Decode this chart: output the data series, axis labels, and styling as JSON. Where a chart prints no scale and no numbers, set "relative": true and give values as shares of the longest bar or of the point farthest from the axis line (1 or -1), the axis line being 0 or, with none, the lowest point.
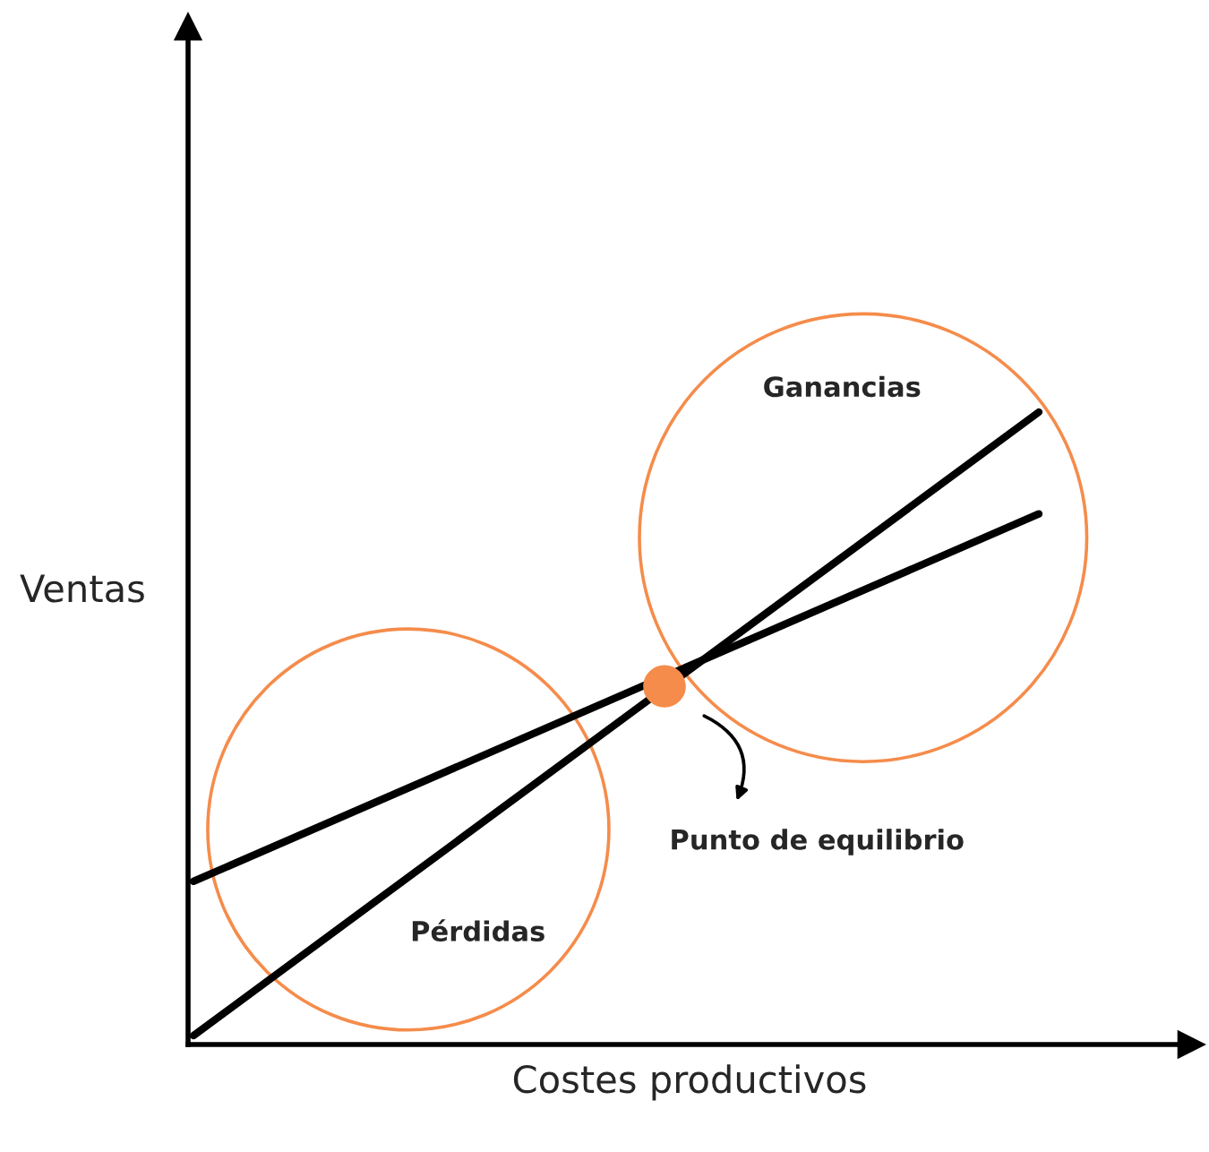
{
  "chart_data": {
    "type": "line",
    "xlabel": "Costes productivos",
    "ylabel": "Ventas",
    "relative": true,
    "categories": [
      null,
      null
    ],
    "series": [
      {
        "color": "#000000",
        "values": [
          0.014,
          1.0
        ]
      },
      {
        "color": "#000000",
        "values": [
          0.258,
          0.839
        ]
      }
    ],
    "annotations": [
      "Ganancias",
      "Pérdidas",
      "Punto de equilibrio"
    ],
    "legend": false,
    "marker": "none",
    "line_style": "solid"
  }
}
